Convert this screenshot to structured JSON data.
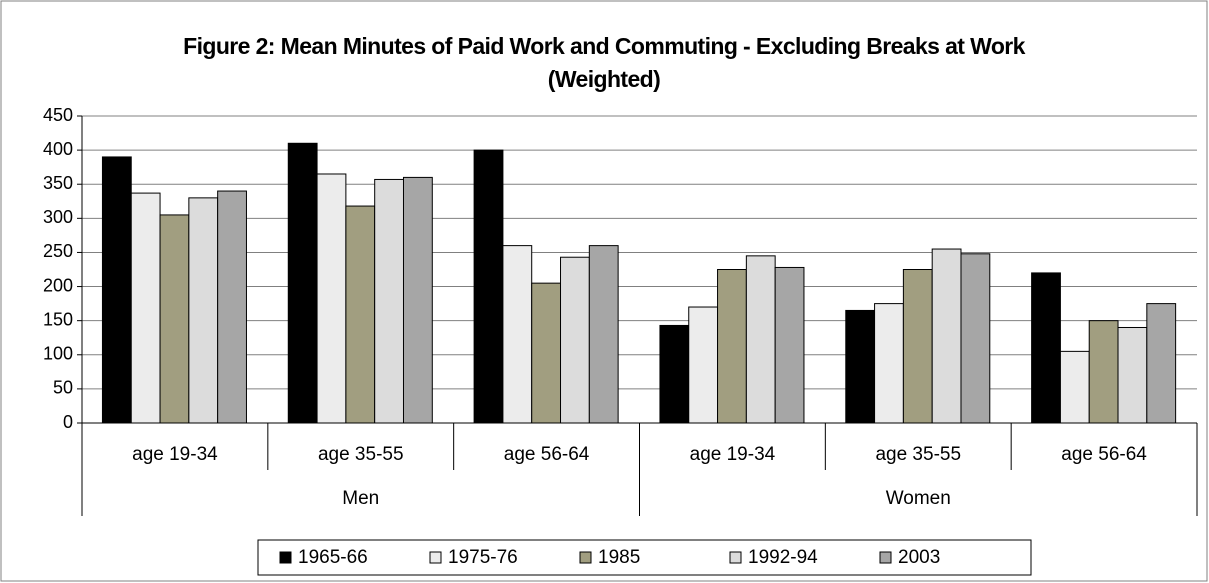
{
  "chart_data": {
    "type": "bar",
    "title": "Figure 2: Mean Minutes of Paid Work and Commuting  - Excluding Breaks at Work (Weighted)",
    "groups": [
      {
        "name": "Men",
        "categories": [
          "age 19-34",
          "age 35-55",
          "age 56-64"
        ]
      },
      {
        "name": "Women",
        "categories": [
          "age 19-34",
          "age 35-55",
          "age 56-64"
        ]
      }
    ],
    "series": [
      {
        "name": "1965-66",
        "color": "#000000",
        "values": [
          390,
          410,
          400,
          143,
          165,
          220
        ]
      },
      {
        "name": "1975-76",
        "color": "#ececec",
        "values": [
          337,
          365,
          260,
          170,
          175,
          105
        ]
      },
      {
        "name": "1985",
        "color": "#a19e80",
        "values": [
          305,
          318,
          205,
          225,
          225,
          150
        ]
      },
      {
        "name": "1992-94",
        "color": "#dcdcdc",
        "values": [
          330,
          357,
          243,
          245,
          255,
          140
        ]
      },
      {
        "name": "2003",
        "color": "#a6a6a6",
        "values": [
          340,
          360,
          260,
          228,
          248,
          175
        ]
      }
    ],
    "ylim": [
      0,
      450
    ],
    "yticks": [
      0,
      50,
      100,
      150,
      200,
      250,
      300,
      350,
      400,
      450
    ],
    "grid": true
  }
}
